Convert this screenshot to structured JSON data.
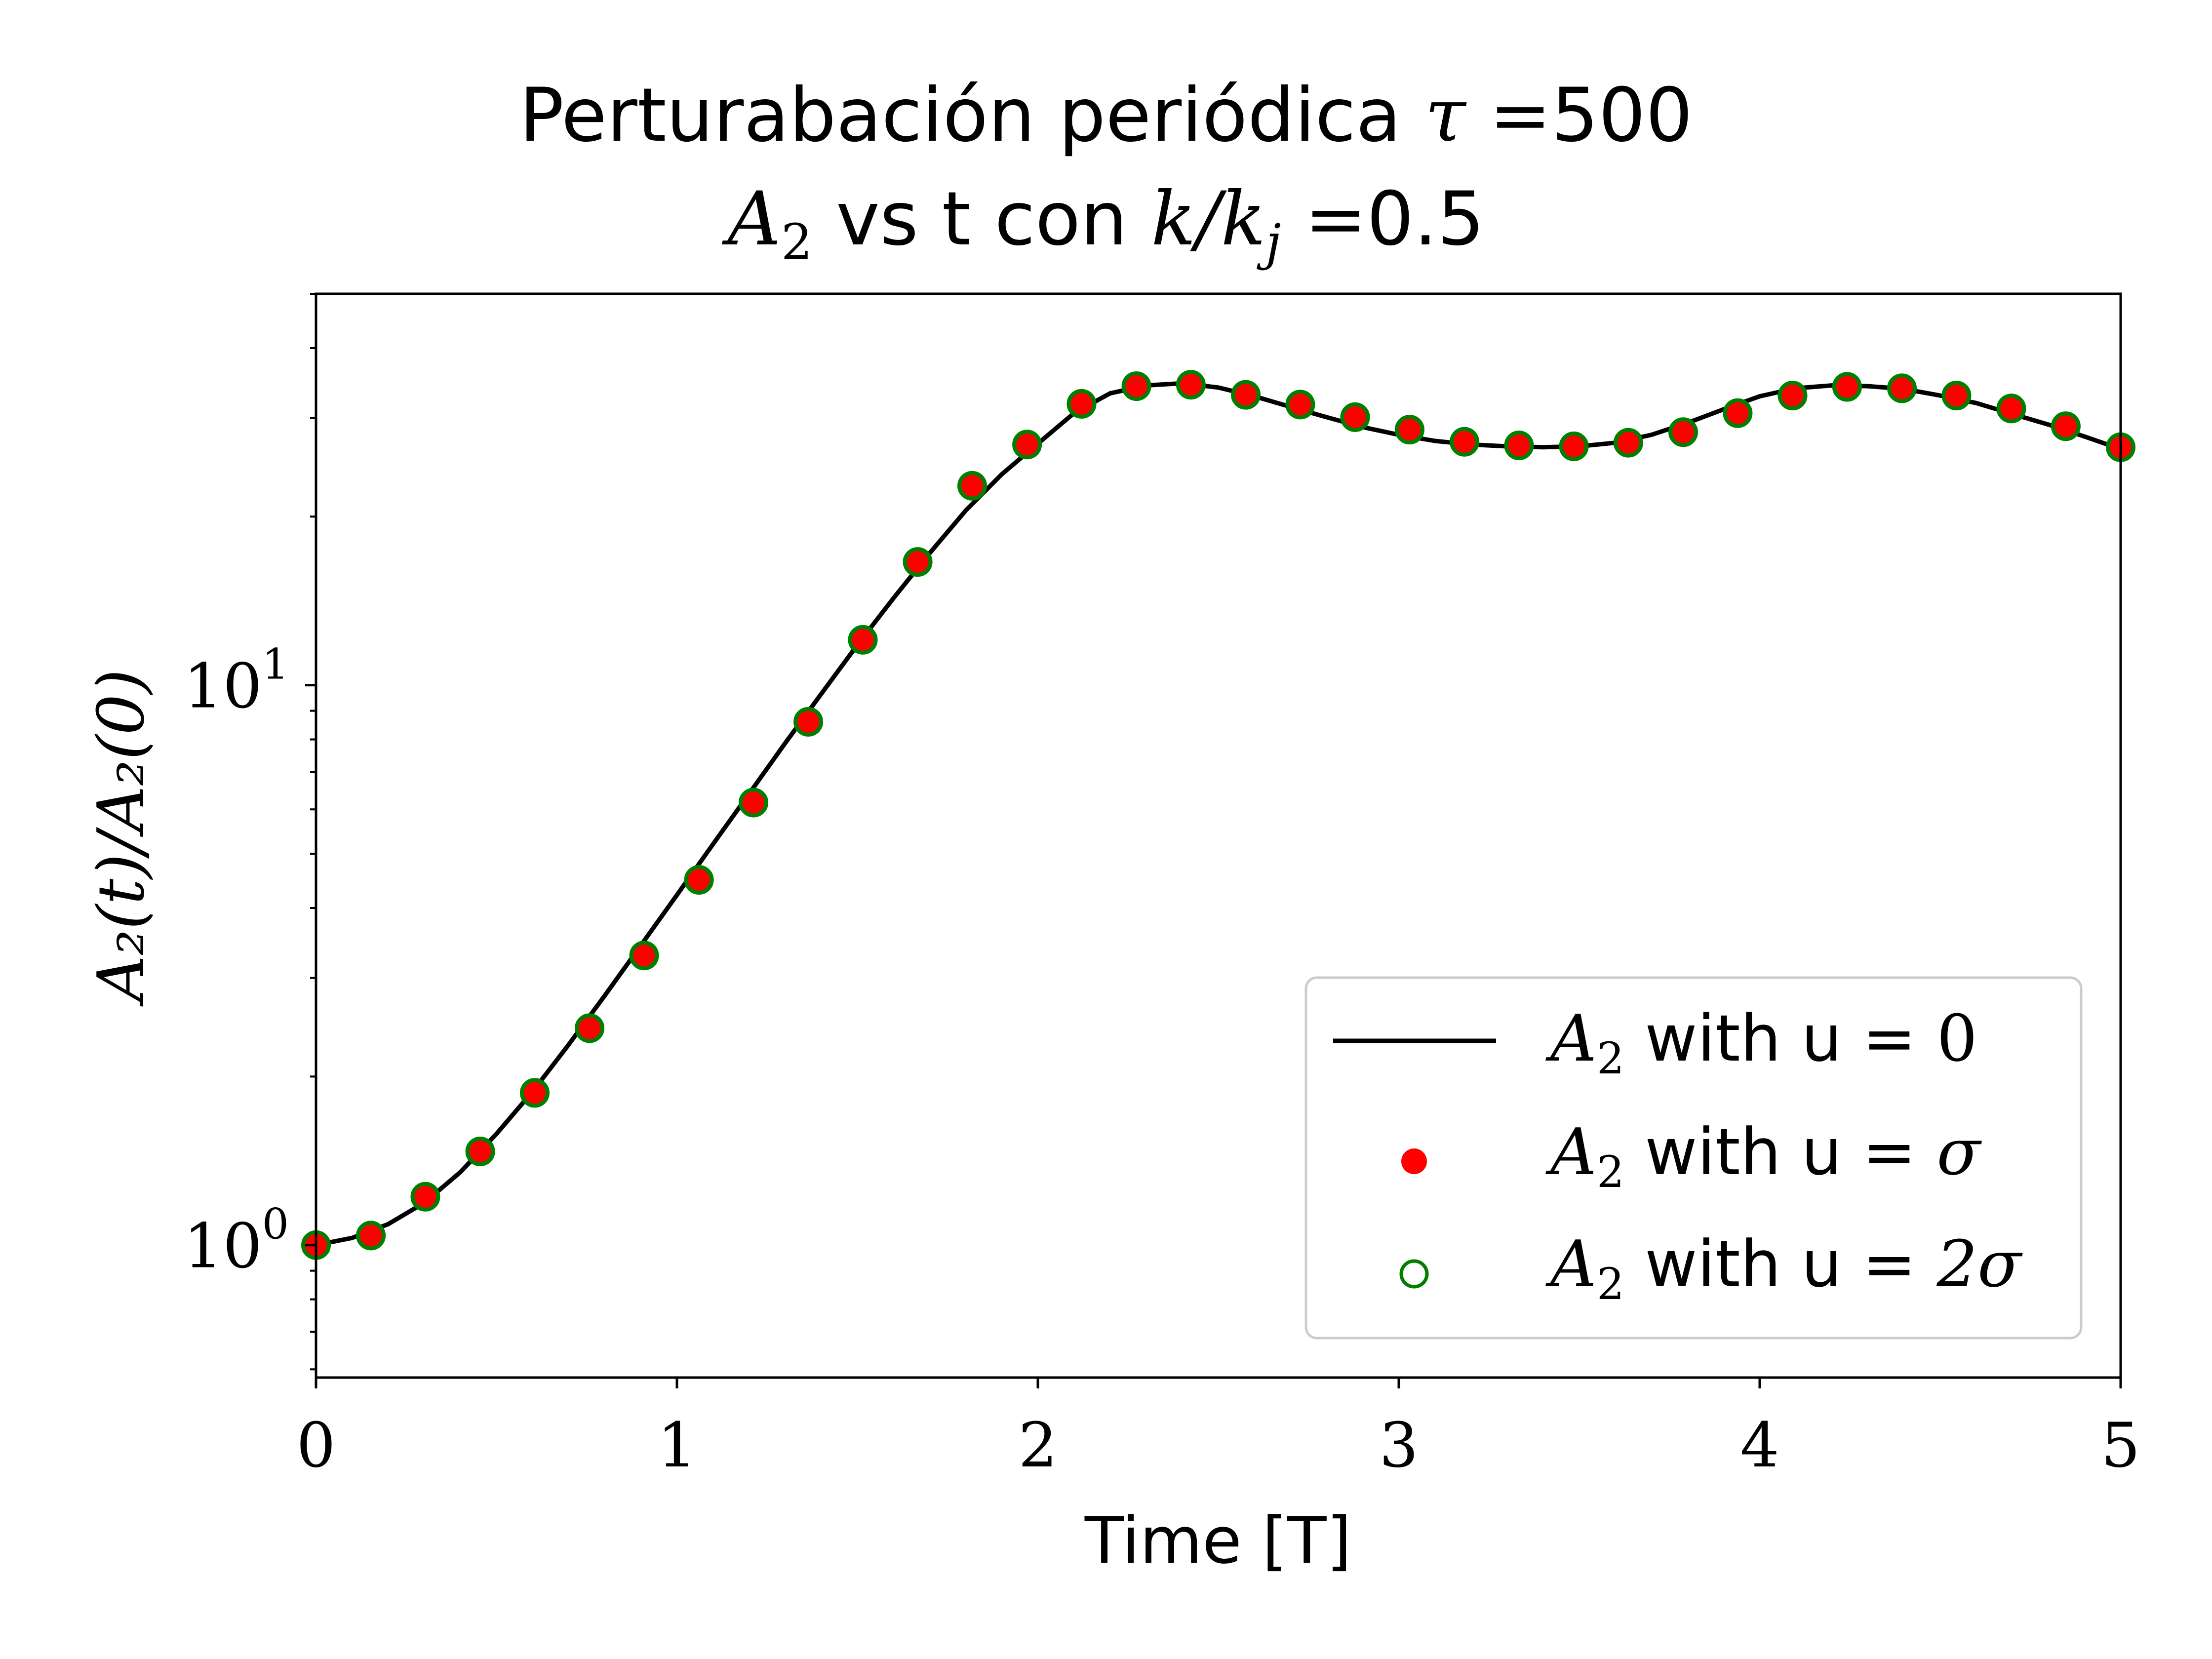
{
  "chart_data": {
    "type": "line",
    "title_line1": {
      "prefix": "Perturabación periódica ",
      "symbol": "τ",
      "equals": " =",
      "value": "500"
    },
    "title_line2": {
      "symbol": "A",
      "symbol_sub": "2",
      "middle": " vs t con ",
      "ratio_symbol": "k/k",
      "ratio_sub": "j",
      "equals": " =",
      "value": "0.5"
    },
    "xlabel": "Time [T]",
    "ylabel": "A₂(t)/A₂(0)",
    "xlim": [
      0,
      5
    ],
    "ylim": [
      0.58,
      50
    ],
    "yscale": "log",
    "x_ticks": [
      {
        "value": 0,
        "label": "0"
      },
      {
        "value": 1,
        "label": "1"
      },
      {
        "value": 2,
        "label": "2"
      },
      {
        "value": 3,
        "label": "3"
      },
      {
        "value": 4,
        "label": "4"
      },
      {
        "value": 5,
        "label": "5"
      }
    ],
    "y_major_ticks": [
      {
        "value": 1,
        "base": "10",
        "exp": "0"
      },
      {
        "value": 10,
        "base": "10",
        "exp": "1"
      }
    ],
    "grid": false,
    "legend_position": "lower right",
    "series": [
      {
        "name": "A₂ with u = 0",
        "style": "line",
        "color": "#000000",
        "x": [
          0,
          0.1,
          0.2,
          0.3,
          0.4,
          0.5,
          0.6,
          0.7,
          0.8,
          0.9,
          1.0,
          1.1,
          1.2,
          1.3,
          1.4,
          1.5,
          1.6,
          1.7,
          1.8,
          1.9,
          2.0,
          2.1,
          2.2,
          2.3,
          2.4,
          2.5,
          2.6,
          2.7,
          2.8,
          2.9,
          3.0,
          3.1,
          3.2,
          3.3,
          3.4,
          3.5,
          3.6,
          3.7,
          3.8,
          3.9,
          4.0,
          4.1,
          4.2,
          4.3,
          4.4,
          4.5,
          4.6,
          4.7,
          4.8,
          4.9,
          5.0
        ],
        "y": [
          1.0,
          1.03,
          1.09,
          1.19,
          1.35,
          1.58,
          1.88,
          2.28,
          2.79,
          3.43,
          4.22,
          5.2,
          6.4,
          7.88,
          9.65,
          11.8,
          14.3,
          17.2,
          20.5,
          23.8,
          27.0,
          30.6,
          33.2,
          34.3,
          34.6,
          34.0,
          32.8,
          31.4,
          30.1,
          28.9,
          28.0,
          27.3,
          26.9,
          26.7,
          26.6,
          26.7,
          27.1,
          28.0,
          29.4,
          31.1,
          32.8,
          33.9,
          34.3,
          34.2,
          33.8,
          32.9,
          31.9,
          30.5,
          29.2,
          27.8,
          26.4
        ]
      },
      {
        "name": "A₂ with u = σ",
        "style": "filled-markers",
        "color": "#ff0000",
        "x": [
          0,
          0.152,
          0.303,
          0.455,
          0.606,
          0.758,
          0.909,
          1.061,
          1.212,
          1.364,
          1.515,
          1.667,
          1.818,
          1.97,
          2.121,
          2.273,
          2.424,
          2.576,
          2.727,
          2.879,
          3.03,
          3.182,
          3.333,
          3.485,
          3.636,
          3.788,
          3.939,
          4.091,
          4.242,
          4.394,
          4.545,
          4.697,
          4.848,
          5.0
        ],
        "y": [
          1.0,
          1.04,
          1.22,
          1.47,
          1.87,
          2.44,
          3.29,
          4.49,
          6.17,
          8.6,
          12.05,
          16.6,
          22.7,
          26.9,
          31.8,
          34.2,
          34.4,
          33.0,
          31.7,
          30.1,
          28.6,
          27.2,
          26.8,
          26.7,
          27.1,
          28.3,
          30.6,
          32.9,
          34.1,
          33.9,
          32.9,
          31.2,
          29.0,
          26.6
        ]
      },
      {
        "name": "A₂ with u = 2σ",
        "style": "hollow-markers",
        "color": "#008000",
        "x": [
          0,
          0.152,
          0.303,
          0.455,
          0.606,
          0.758,
          0.909,
          1.061,
          1.212,
          1.364,
          1.515,
          1.667,
          1.818,
          1.97,
          2.121,
          2.273,
          2.424,
          2.576,
          2.727,
          2.879,
          3.03,
          3.182,
          3.333,
          3.485,
          3.636,
          3.788,
          3.939,
          4.091,
          4.242,
          4.394,
          4.545,
          4.697,
          4.848,
          5.0
        ],
        "y": [
          1.0,
          1.04,
          1.22,
          1.47,
          1.87,
          2.44,
          3.29,
          4.49,
          6.17,
          8.6,
          12.05,
          16.6,
          22.7,
          26.9,
          31.8,
          34.2,
          34.4,
          33.0,
          31.7,
          30.1,
          28.6,
          27.2,
          26.8,
          26.7,
          27.1,
          28.3,
          30.6,
          32.9,
          34.1,
          33.9,
          32.9,
          31.2,
          29.0,
          26.6
        ]
      }
    ],
    "legend": [
      {
        "symbol": "A",
        "sub": "2",
        "text": " with u = ",
        "value": "0"
      },
      {
        "symbol": "A",
        "sub": "2",
        "text": " with u = ",
        "value": "σ"
      },
      {
        "symbol": "A",
        "sub": "2",
        "text": " with u = ",
        "value": "2σ"
      }
    ]
  }
}
